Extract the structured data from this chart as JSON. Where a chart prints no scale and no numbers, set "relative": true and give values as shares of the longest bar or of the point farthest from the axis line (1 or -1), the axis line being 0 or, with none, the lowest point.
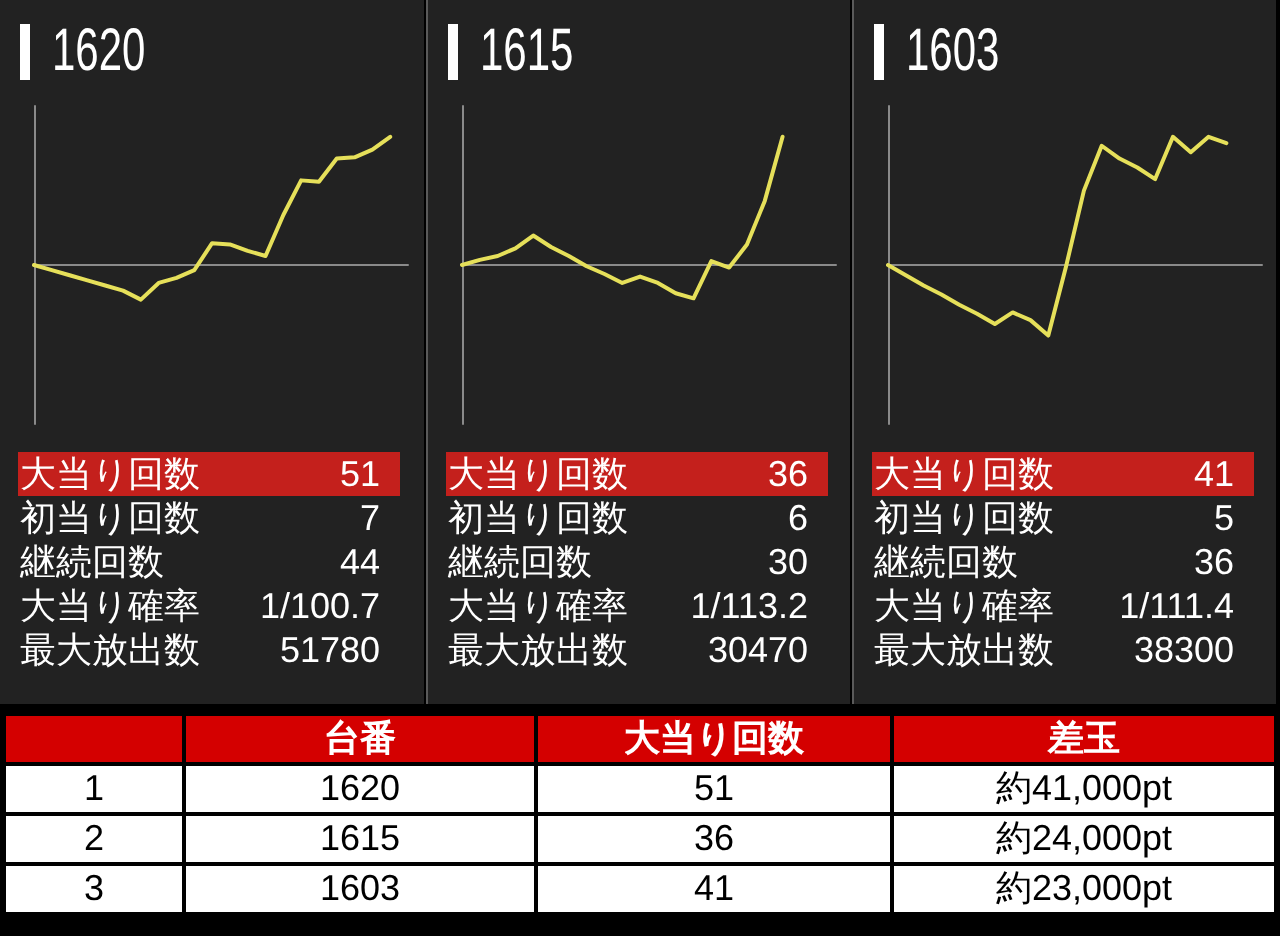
{
  "chart_data": [
    {
      "type": "line",
      "title": "1620",
      "relative": true,
      "categories": [
        null,
        null,
        null,
        null,
        null,
        null,
        null,
        null,
        null,
        null,
        null,
        null,
        null,
        null,
        null,
        null,
        null,
        null,
        null,
        null,
        null,
        null
      ],
      "values": [
        0,
        -0.04,
        -0.08,
        -0.12,
        -0.16,
        -0.2,
        -0.27,
        -0.14,
        -0.1,
        -0.04,
        0.17,
        0.16,
        0.11,
        0.07,
        0.39,
        0.66,
        0.65,
        0.83,
        0.84,
        0.9,
        1,
        null
      ],
      "color": "#e6e05a",
      "annotations": [
        "大当り回数",
        "51",
        "初当り回数",
        "7",
        "継続回数",
        "44",
        "大当り確率",
        "1/100.7",
        "最大放出数",
        "51780"
      ]
    },
    {
      "type": "line",
      "title": "1615",
      "relative": true,
      "categories": [
        null,
        null,
        null,
        null,
        null,
        null,
        null,
        null,
        null,
        null,
        null,
        null,
        null,
        null,
        null,
        null,
        null,
        null,
        null,
        null,
        null,
        null
      ],
      "values": [
        0,
        0.04,
        0.07,
        0.13,
        0.23,
        0.14,
        0.07,
        -0.01,
        -0.07,
        -0.14,
        -0.09,
        -0.14,
        -0.22,
        -0.26,
        0.03,
        -0.02,
        0.16,
        0.5,
        1,
        null,
        null,
        null
      ],
      "color": "#e6e05a",
      "annotations": [
        "大当り回数",
        "36",
        "初当り回数",
        "6",
        "継続回数",
        "30",
        "大当り確率",
        "1/113.2",
        "最大放出数",
        "30470"
      ]
    },
    {
      "type": "line",
      "title": "1603",
      "relative": true,
      "categories": [
        null,
        null,
        null,
        null,
        null,
        null,
        null,
        null,
        null,
        null,
        null,
        null,
        null,
        null,
        null,
        null,
        null,
        null,
        null,
        null,
        null,
        null
      ],
      "values": [
        0,
        -0.08,
        -0.16,
        -0.23,
        -0.31,
        -0.38,
        -0.46,
        -0.37,
        -0.43,
        -0.55,
        -0.01,
        0.58,
        0.93,
        0.83,
        0.76,
        0.67,
        1,
        0.88,
        1,
        0.95,
        null,
        null
      ],
      "color": "#e6e05a",
      "annotations": [
        "大当り回数",
        "41",
        "初当り回数",
        "5",
        "継続回数",
        "36",
        "大当り確率",
        "1/111.4",
        "最大放出数",
        "38300"
      ]
    },
    {
      "type": "other",
      "categories": [
        null,
        "台番",
        "大当り回数",
        "差玉"
      ],
      "annotations": [
        "1",
        "1620",
        "51",
        "約41,000pt",
        "2",
        "1615",
        "36",
        "約24,000pt",
        "3",
        "1603",
        "41",
        "約23,000pt"
      ]
    }
  ]
}
